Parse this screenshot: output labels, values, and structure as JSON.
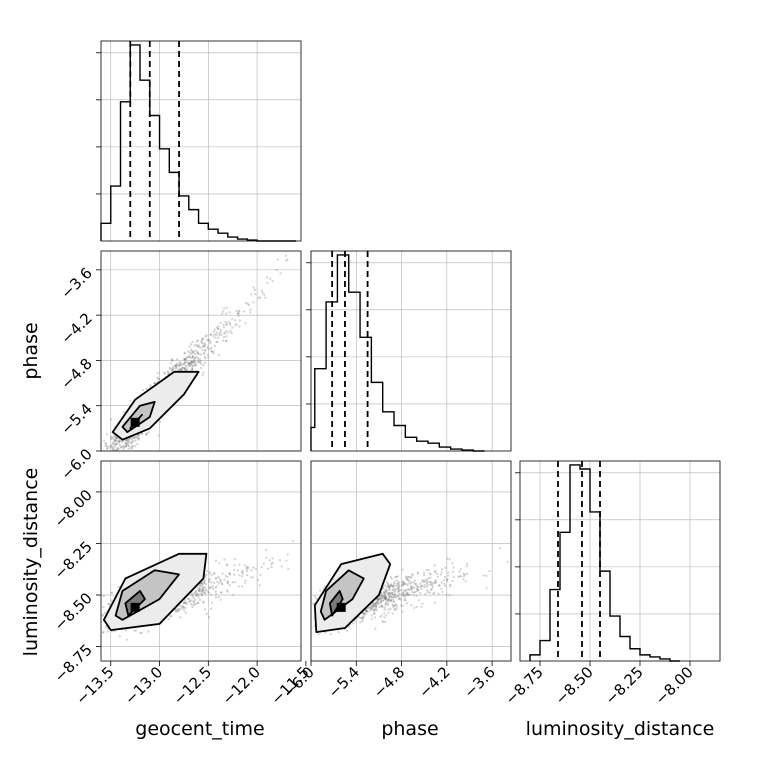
{
  "chart_data": [
    {
      "type": "histogram",
      "panel": "geocent_time marginal",
      "variable": "geocent_time",
      "xlim": [
        -13.6,
        -11.55
      ],
      "bins": [
        -13.6,
        -13.5,
        -13.4,
        -13.3,
        -13.2,
        -13.1,
        -13.0,
        -12.9,
        -12.8,
        -12.7,
        -12.6,
        -12.5,
        -12.4,
        -12.3,
        -12.2,
        -12.1,
        -12.0,
        -11.9,
        -11.8,
        -11.7,
        -11.6
      ],
      "counts": [
        9,
        28,
        71,
        100,
        82,
        64,
        47,
        35,
        23,
        16,
        9,
        6,
        4,
        2,
        1,
        0.5,
        0,
        0,
        0,
        0
      ],
      "quantiles": [
        -13.3,
        -13.1,
        -12.8
      ]
    },
    {
      "type": "histogram",
      "panel": "phase marginal",
      "variable": "phase",
      "xlim": [
        -6.0,
        -3.35
      ],
      "bins": [
        -6.1,
        -5.95,
        -5.8,
        -5.65,
        -5.5,
        -5.35,
        -5.2,
        -5.05,
        -4.9,
        -4.75,
        -4.6,
        -4.45,
        -4.3,
        -4.15,
        -4.0,
        -3.85,
        -3.7
      ],
      "counts": [
        12,
        42,
        76,
        100,
        81,
        58,
        35,
        20,
        13,
        7,
        5,
        4,
        2,
        1,
        0.5,
        0
      ],
      "quantiles": [
        -5.72,
        -5.55,
        -5.25
      ]
    },
    {
      "type": "histogram",
      "panel": "luminosity_distance marginal",
      "variable": "luminosity_distance",
      "xlim": [
        -8.85,
        -7.85
      ],
      "bins": [
        -8.8,
        -8.75,
        -8.7,
        -8.65,
        -8.6,
        -8.55,
        -8.5,
        -8.45,
        -8.4,
        -8.35,
        -8.3,
        -8.25,
        -8.2,
        -8.15,
        -8.1,
        -8.05
      ],
      "counts": [
        3,
        10,
        35,
        63,
        96,
        94,
        73,
        44,
        22,
        12,
        6,
        3,
        2,
        1,
        0
      ],
      "quantiles": [
        -8.66,
        -8.54,
        -8.45
      ]
    },
    {
      "type": "scatter-density",
      "panel": "geocent_time vs phase",
      "x_variable": "geocent_time",
      "y_variable": "phase",
      "xlim": [
        -13.6,
        -11.55
      ],
      "ylim": [
        -6.0,
        -3.35
      ],
      "peak": [
        -13.25,
        -5.62
      ],
      "slope": 1.05,
      "contour_levels": [
        [
          [
            -13.38,
            -5.85
          ],
          [
            -13.1,
            -5.7
          ],
          [
            -12.75,
            -5.25
          ],
          [
            -12.6,
            -4.95
          ],
          [
            -12.85,
            -4.95
          ],
          [
            -13.25,
            -5.32
          ],
          [
            -13.48,
            -5.75
          ]
        ],
        [
          [
            -13.33,
            -5.75
          ],
          [
            -13.1,
            -5.55
          ],
          [
            -13.05,
            -5.35
          ],
          [
            -13.2,
            -5.4
          ],
          [
            -13.38,
            -5.68
          ]
        ],
        [
          [
            -13.3,
            -5.7
          ],
          [
            -13.18,
            -5.52
          ],
          [
            -13.25,
            -5.62
          ]
        ]
      ]
    },
    {
      "type": "scatter-density",
      "panel": "geocent_time vs luminosity_distance",
      "x_variable": "geocent_time",
      "y_variable": "luminosity_distance",
      "xlim": [
        -13.6,
        -11.55
      ],
      "ylim": [
        -8.82,
        -7.85
      ],
      "peak": [
        -13.25,
        -8.56
      ],
      "slope": 0.3,
      "contour_levels": [
        [
          [
            -13.5,
            -8.67
          ],
          [
            -13.0,
            -8.64
          ],
          [
            -12.55,
            -8.42
          ],
          [
            -12.52,
            -8.3
          ],
          [
            -12.8,
            -8.3
          ],
          [
            -13.35,
            -8.42
          ],
          [
            -13.57,
            -8.62
          ]
        ],
        [
          [
            -13.38,
            -8.62
          ],
          [
            -13.0,
            -8.52
          ],
          [
            -12.8,
            -8.4
          ],
          [
            -13.05,
            -8.38
          ],
          [
            -13.38,
            -8.48
          ],
          [
            -13.45,
            -8.6
          ]
        ],
        [
          [
            -13.32,
            -8.6
          ],
          [
            -13.15,
            -8.52
          ],
          [
            -13.2,
            -8.48
          ],
          [
            -13.35,
            -8.54
          ]
        ]
      ]
    },
    {
      "type": "scatter-density",
      "panel": "phase vs luminosity_distance",
      "x_variable": "phase",
      "y_variable": "luminosity_distance",
      "xlim": [
        -6.0,
        -3.35
      ],
      "ylim": [
        -8.82,
        -7.85
      ],
      "peak": [
        -5.6,
        -8.56
      ],
      "slope": 0.28,
      "contour_levels": [
        [
          [
            -5.93,
            -8.68
          ],
          [
            -5.55,
            -8.66
          ],
          [
            -5.1,
            -8.5
          ],
          [
            -4.95,
            -8.35
          ],
          [
            -5.05,
            -8.3
          ],
          [
            -5.6,
            -8.35
          ],
          [
            -5.95,
            -8.55
          ]
        ],
        [
          [
            -5.82,
            -8.62
          ],
          [
            -5.45,
            -8.52
          ],
          [
            -5.3,
            -8.42
          ],
          [
            -5.5,
            -8.38
          ],
          [
            -5.8,
            -8.48
          ],
          [
            -5.87,
            -8.58
          ]
        ],
        [
          [
            -5.72,
            -8.6
          ],
          [
            -5.58,
            -8.52
          ],
          [
            -5.62,
            -8.48
          ],
          [
            -5.75,
            -8.54
          ]
        ]
      ]
    }
  ],
  "axis_labels": {
    "geocent_time": "geocent_time",
    "phase": "phase",
    "luminosity_distance": "luminosity_distance"
  },
  "ticks": {
    "geocent_time": [
      "−13.5",
      "−13.0",
      "−12.5",
      "−12.0",
      "−11.5"
    ],
    "phase_x": [
      "−6.0",
      "−5.4",
      "−4.8",
      "−4.2",
      "−3.6"
    ],
    "phase_y": [
      "−3.6",
      "−4.2",
      "−4.8",
      "−5.4",
      "−6.0"
    ],
    "luminosity_distance_x": [
      "−8.75",
      "−8.50",
      "−8.25",
      "−8.00"
    ],
    "luminosity_distance_y": [
      "−8.00",
      "−8.25",
      "−8.50",
      "−8.75"
    ]
  },
  "style": {
    "line_color": "#000000",
    "grid_color": "#b0b0b0",
    "scatter_color": "#7f7f7f",
    "density_fills": [
      "#ececec",
      "#c4c4c4",
      "#7a7a7a",
      "#000000"
    ],
    "grid": true
  }
}
